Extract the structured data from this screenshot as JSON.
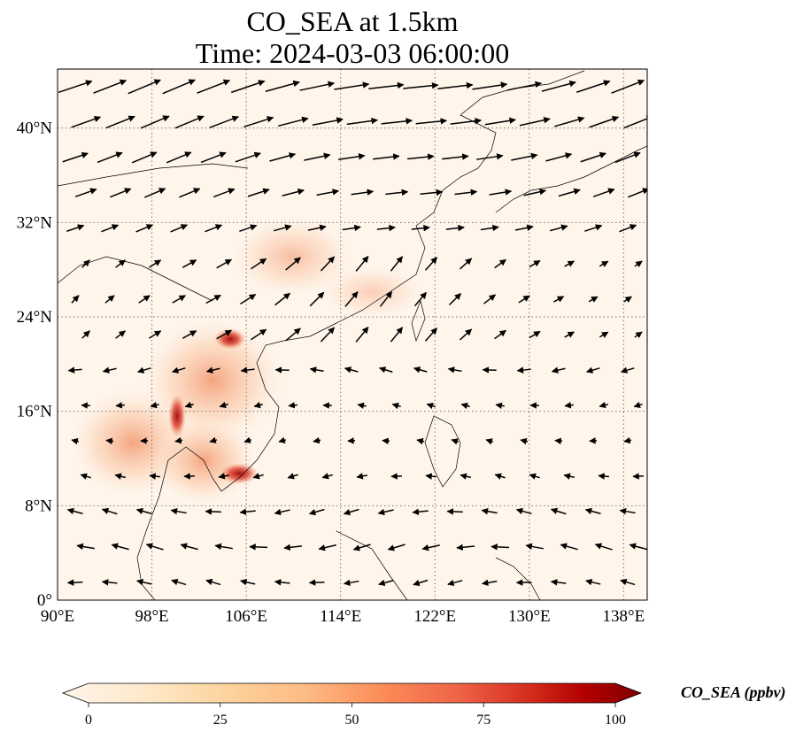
{
  "title_line1": "CO_SEA at 1.5km",
  "title_line2": "Time: 2024-03-03 06:00:00",
  "map": {
    "lon_range": [
      90,
      140
    ],
    "lat_range": [
      0,
      45
    ],
    "lon_ticks": [
      {
        "value": 90,
        "label": "90°E"
      },
      {
        "value": 98,
        "label": "98°E"
      },
      {
        "value": 106,
        "label": "106°E"
      },
      {
        "value": 114,
        "label": "114°E"
      },
      {
        "value": 122,
        "label": "122°E"
      },
      {
        "value": 130,
        "label": "130°E"
      },
      {
        "value": 138,
        "label": "138°E"
      }
    ],
    "lat_ticks": [
      {
        "value": 0,
        "label": "0°"
      },
      {
        "value": 8,
        "label": "8°N"
      },
      {
        "value": 16,
        "label": "16°N"
      },
      {
        "value": 24,
        "label": "24°N"
      },
      {
        "value": 32,
        "label": "32°N"
      },
      {
        "value": 40,
        "label": "40°N"
      }
    ],
    "grid": "dotted",
    "background_color": "#fff5eb"
  },
  "colorbar": {
    "label": "CO_SEA (ppbv)",
    "ticks": [
      {
        "value": 0,
        "label": "0"
      },
      {
        "value": 25,
        "label": "25"
      },
      {
        "value": 50,
        "label": "50"
      },
      {
        "value": 75,
        "label": "75"
      },
      {
        "value": 100,
        "label": "100"
      }
    ],
    "range": [
      0,
      100
    ],
    "colormap": [
      "#fff5eb",
      "#fdd49e",
      "#fdbb84",
      "#fc8d59",
      "#ef6548",
      "#d7301f",
      "#b30000",
      "#7f0000"
    ]
  }
}
